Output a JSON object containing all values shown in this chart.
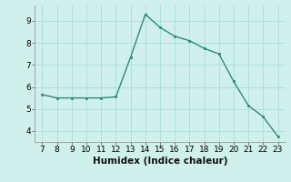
{
  "x": [
    7,
    8,
    9,
    10,
    11,
    12,
    13,
    14,
    15,
    16,
    17,
    18,
    19,
    20,
    21,
    22,
    23
  ],
  "y": [
    5.65,
    5.5,
    5.5,
    5.5,
    5.5,
    5.55,
    7.35,
    9.3,
    8.7,
    8.3,
    8.1,
    7.75,
    7.5,
    6.25,
    5.15,
    4.65,
    3.75
  ],
  "line_color": "#2d8b7a",
  "marker": "s",
  "marker_size": 2.0,
  "bg_color": "#cff0eb",
  "grid_color": "#aaddd7",
  "xlabel": "Humidex (Indice chaleur)",
  "xlim": [
    6.5,
    23.5
  ],
  "ylim": [
    3.5,
    9.7
  ],
  "xticks": [
    7,
    8,
    9,
    10,
    11,
    12,
    13,
    14,
    15,
    16,
    17,
    18,
    19,
    20,
    21,
    22,
    23
  ],
  "yticks": [
    4,
    5,
    6,
    7,
    8,
    9
  ],
  "tick_fontsize": 6.5,
  "label_fontsize": 7.5,
  "linewidth": 1.0
}
